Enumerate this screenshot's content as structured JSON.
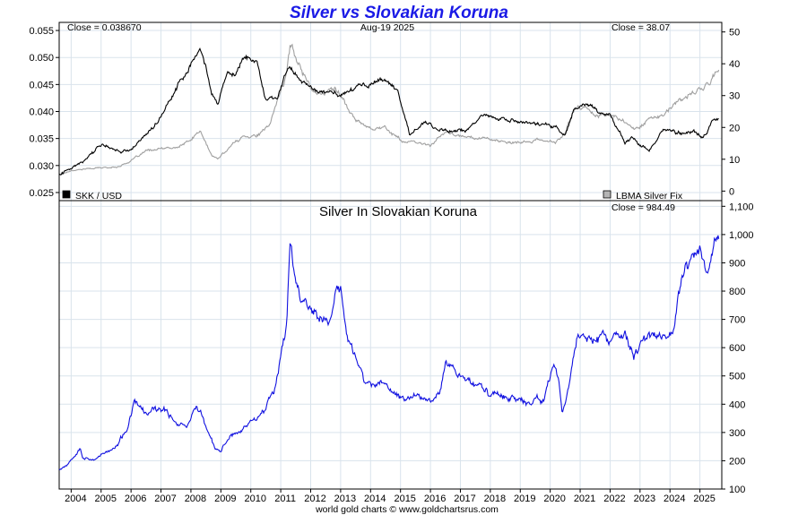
{
  "chart_data": [
    {
      "type": "line",
      "title": "Silver vs Slovakian Koruna",
      "date_label": "Aug-19  2025",
      "left_close_label": "Close = 0.038670",
      "right_close_label": "Close = 38.07",
      "left_axis": {
        "ticks": [
          0.025,
          0.03,
          0.035,
          0.04,
          0.045,
          0.05,
          0.055
        ],
        "tick_labels": [
          "0.025",
          "0.030",
          "0.035",
          "0.040",
          "0.045",
          "0.050",
          "0.055"
        ],
        "range": [
          0.0235,
          0.0565
        ]
      },
      "right_axis": {
        "ticks": [
          0,
          10,
          20,
          30,
          40,
          50
        ],
        "tick_labels": [
          "0",
          "10",
          "20",
          "30",
          "40",
          "50"
        ],
        "range": [
          -3,
          53
        ]
      },
      "grid": true,
      "series": [
        {
          "name": "SKK / USD",
          "axis": "left",
          "color": "#000000",
          "x": [
            2003.6,
            2004.0,
            2004.5,
            2005.0,
            2005.5,
            2005.9,
            2006.5,
            2007.0,
            2007.5,
            2008.0,
            2008.3,
            2008.5,
            2008.7,
            2008.9,
            2009.2,
            2009.5,
            2009.8,
            2010.2,
            2010.5,
            2010.9,
            2011.3,
            2011.6,
            2012.0,
            2012.5,
            2013.0,
            2013.5,
            2014.0,
            2014.5,
            2014.9,
            2015.3,
            2015.8,
            2016.3,
            2016.8,
            2017.3,
            2017.8,
            2018.2,
            2018.7,
            2019.2,
            2019.7,
            2020.2,
            2020.5,
            2020.8,
            2021.2,
            2021.6,
            2022.0,
            2022.5,
            2022.8,
            2023.3,
            2023.8,
            2024.3,
            2024.8,
            2025.1,
            2025.4,
            2025.63
          ],
          "values": [
            0.0285,
            0.0295,
            0.0315,
            0.034,
            0.033,
            0.0325,
            0.036,
            0.039,
            0.044,
            0.049,
            0.0515,
            0.048,
            0.043,
            0.041,
            0.0475,
            0.047,
            0.0505,
            0.0495,
            0.042,
            0.043,
            0.0485,
            0.0465,
            0.044,
            0.0435,
            0.043,
            0.0445,
            0.045,
            0.046,
            0.044,
            0.036,
            0.038,
            0.0365,
            0.0365,
            0.037,
            0.0395,
            0.0385,
            0.0385,
            0.0378,
            0.0375,
            0.037,
            0.036,
            0.0405,
            0.0415,
            0.04,
            0.0395,
            0.0345,
            0.035,
            0.0325,
            0.0365,
            0.036,
            0.0365,
            0.035,
            0.038,
            0.03867
          ]
        },
        {
          "name": "LBMA Silver Fix",
          "axis": "right",
          "color": "#a0a0a0",
          "x": [
            2003.6,
            2004.0,
            2004.5,
            2005.0,
            2005.5,
            2006.0,
            2006.5,
            2007.0,
            2007.5,
            2008.0,
            2008.3,
            2008.7,
            2008.9,
            2009.3,
            2009.8,
            2010.2,
            2010.6,
            2010.9,
            2011.2,
            2011.32,
            2011.6,
            2012.0,
            2012.4,
            2012.8,
            2013.2,
            2013.5,
            2014.0,
            2014.5,
            2015.0,
            2015.5,
            2016.0,
            2016.5,
            2017.0,
            2017.5,
            2018.0,
            2018.5,
            2019.0,
            2019.5,
            2020.2,
            2020.5,
            2020.8,
            2021.2,
            2021.6,
            2022.0,
            2022.5,
            2022.8,
            2023.3,
            2023.8,
            2024.3,
            2024.8,
            2025.2,
            2025.63
          ],
          "values": [
            5.0,
            6.5,
            7.0,
            7.3,
            7.5,
            9.5,
            12.5,
            13.2,
            13.5,
            16.0,
            19.0,
            11.0,
            10.0,
            14.0,
            17.5,
            17.5,
            20.0,
            29.0,
            37.0,
            46.0,
            40.0,
            33.0,
            30.0,
            33.0,
            27.0,
            22.0,
            20.0,
            20.0,
            16.0,
            15.0,
            14.5,
            18.5,
            17.0,
            17.0,
            16.5,
            15.0,
            15.0,
            16.0,
            15.5,
            18.0,
            26.0,
            26.0,
            24.0,
            24.0,
            22.0,
            19.0,
            23.0,
            24.0,
            28.0,
            31.0,
            33.0,
            38.07
          ]
        }
      ]
    },
    {
      "type": "line",
      "title": "Silver In Slovakian Koruna",
      "close_label": "Close = 984.49",
      "axis": {
        "ticks": [
          100,
          200,
          300,
          400,
          500,
          600,
          700,
          800,
          900,
          1000,
          1100
        ],
        "tick_labels": [
          "100",
          "200",
          "300",
          "400",
          "500",
          "600",
          "700",
          "800",
          "900",
          "1,000",
          "1,100"
        ],
        "range": [
          100,
          1120
        ]
      },
      "x_axis": {
        "tick_labels": [
          "2004",
          "2005",
          "2006",
          "2007",
          "2008",
          "2009",
          "2010",
          "2011",
          "2012",
          "2013",
          "2014",
          "2015",
          "2016",
          "2017",
          "2018",
          "2019",
          "2020",
          "2021",
          "2022",
          "2023",
          "2024",
          "2025"
        ],
        "range": [
          2003.6,
          2025.73
        ]
      },
      "grid": true,
      "series": [
        {
          "name": "Silver In Slovakian Koruna",
          "color": "#1010e0",
          "x": [
            2003.6,
            2003.9,
            2004.3,
            2004.4,
            2004.7,
            2005.0,
            2005.5,
            2005.9,
            2006.1,
            2006.3,
            2006.5,
            2006.8,
            2007.2,
            2007.6,
            2007.9,
            2008.2,
            2008.4,
            2008.6,
            2008.8,
            2009.0,
            2009.3,
            2009.6,
            2009.9,
            2010.2,
            2010.5,
            2010.8,
            2011.0,
            2011.2,
            2011.32,
            2011.5,
            2011.7,
            2012.0,
            2012.3,
            2012.6,
            2012.8,
            2013.0,
            2013.2,
            2013.5,
            2013.8,
            2014.2,
            2014.6,
            2015.0,
            2015.5,
            2016.0,
            2016.3,
            2016.5,
            2016.8,
            2017.2,
            2017.6,
            2018.0,
            2018.5,
            2018.9,
            2019.2,
            2019.5,
            2019.8,
            2020.1,
            2020.3,
            2020.4,
            2020.6,
            2020.9,
            2021.1,
            2021.5,
            2021.9,
            2022.2,
            2022.5,
            2022.8,
            2023.1,
            2023.5,
            2023.9,
            2024.1,
            2024.3,
            2024.5,
            2024.8,
            2025.0,
            2025.2,
            2025.4,
            2025.55,
            2025.63
          ],
          "values": [
            170,
            190,
            255,
            210,
            205,
            220,
            245,
            320,
            400,
            390,
            360,
            380,
            370,
            330,
            330,
            400,
            350,
            290,
            240,
            230,
            290,
            300,
            330,
            360,
            390,
            460,
            580,
            700,
            980,
            820,
            770,
            750,
            700,
            680,
            790,
            800,
            650,
            560,
            480,
            470,
            460,
            420,
            430,
            420,
            450,
            560,
            520,
            490,
            470,
            430,
            440,
            410,
            400,
            420,
            420,
            520,
            480,
            370,
            440,
            640,
            650,
            630,
            620,
            640,
            640,
            560,
            640,
            650,
            640,
            650,
            790,
            850,
            930,
            960,
            870,
            930,
            1000,
            984.49
          ]
        }
      ]
    }
  ],
  "legend": {
    "left_label": "SKK / USD",
    "left_color": "#000000",
    "right_label": "LBMA Silver Fix",
    "right_color": "#b4b4b4"
  },
  "footer": "world gold charts © www.goldchartsrus.com"
}
